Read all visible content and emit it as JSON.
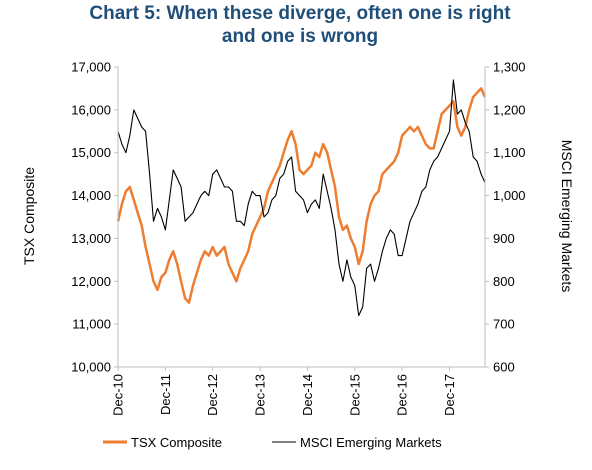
{
  "chart_data": {
    "type": "line",
    "title": "Chart 5: When these diverge, often one is right and one is wrong",
    "title_lines": [
      "Chart 5: When these diverge, often one is right",
      "and one is wrong"
    ],
    "x_ticks": [
      "Dec-10",
      "Dec-11",
      "Dec-12",
      "Dec-13",
      "Dec-14",
      "Dec-15",
      "Dec-16",
      "Dec-17"
    ],
    "x_range": [
      "Dec-10",
      "Sep-18"
    ],
    "y_left": {
      "label": "TSX Composite",
      "range": [
        10000,
        17000
      ],
      "ticks": [
        "10,000",
        "11,000",
        "12,000",
        "13,000",
        "14,000",
        "15,000",
        "16,000",
        "17,000"
      ]
    },
    "y_right": {
      "label": "MSCI Emerging Markets",
      "range": [
        600,
        1300
      ],
      "ticks": [
        "600",
        "700",
        "800",
        "900",
        "1,000",
        "1,100",
        "1,200",
        "1,300"
      ]
    },
    "grid": false,
    "legend_position": "bottom",
    "series": [
      {
        "name": "TSX Composite",
        "axis": "left",
        "color": "#ed7d31",
        "points": [
          [
            "2010-12",
            13400
          ],
          [
            "2011-01",
            13800
          ],
          [
            "2011-02",
            14100
          ],
          [
            "2011-03",
            14200
          ],
          [
            "2011-04",
            13900
          ],
          [
            "2011-05",
            13600
          ],
          [
            "2011-06",
            13300
          ],
          [
            "2011-07",
            12800
          ],
          [
            "2011-08",
            12400
          ],
          [
            "2011-09",
            12000
          ],
          [
            "2011-10",
            11800
          ],
          [
            "2011-11",
            12100
          ],
          [
            "2011-12",
            12200
          ],
          [
            "2012-01",
            12500
          ],
          [
            "2012-02",
            12700
          ],
          [
            "2012-03",
            12400
          ],
          [
            "2012-04",
            12000
          ],
          [
            "2012-05",
            11600
          ],
          [
            "2012-06",
            11500
          ],
          [
            "2012-07",
            11900
          ],
          [
            "2012-08",
            12200
          ],
          [
            "2012-09",
            12500
          ],
          [
            "2012-10",
            12700
          ],
          [
            "2012-11",
            12600
          ],
          [
            "2012-12",
            12800
          ],
          [
            "2013-01",
            12600
          ],
          [
            "2013-02",
            12700
          ],
          [
            "2013-03",
            12800
          ],
          [
            "2013-04",
            12400
          ],
          [
            "2013-05",
            12200
          ],
          [
            "2013-06",
            12000
          ],
          [
            "2013-07",
            12300
          ],
          [
            "2013-08",
            12500
          ],
          [
            "2013-09",
            12700
          ],
          [
            "2013-10",
            13100
          ],
          [
            "2013-11",
            13300
          ],
          [
            "2013-12",
            13500
          ],
          [
            "2014-01",
            13700
          ],
          [
            "2014-02",
            14100
          ],
          [
            "2014-03",
            14300
          ],
          [
            "2014-04",
            14500
          ],
          [
            "2014-05",
            14700
          ],
          [
            "2014-06",
            15000
          ],
          [
            "2014-07",
            15300
          ],
          [
            "2014-08",
            15500
          ],
          [
            "2014-09",
            15200
          ],
          [
            "2014-10",
            14600
          ],
          [
            "2014-11",
            14500
          ],
          [
            "2014-12",
            14600
          ],
          [
            "2015-01",
            14700
          ],
          [
            "2015-02",
            15000
          ],
          [
            "2015-03",
            14900
          ],
          [
            "2015-04",
            15200
          ],
          [
            "2015-05",
            15000
          ],
          [
            "2015-06",
            14600
          ],
          [
            "2015-07",
            14200
          ],
          [
            "2015-08",
            13500
          ],
          [
            "2015-09",
            13200
          ],
          [
            "2015-10",
            13300
          ],
          [
            "2015-11",
            13000
          ],
          [
            "2015-12",
            12800
          ],
          [
            "2016-01",
            12400
          ],
          [
            "2016-02",
            12700
          ],
          [
            "2016-03",
            13400
          ],
          [
            "2016-04",
            13800
          ],
          [
            "2016-05",
            14000
          ],
          [
            "2016-06",
            14100
          ],
          [
            "2016-07",
            14500
          ],
          [
            "2016-08",
            14600
          ],
          [
            "2016-09",
            14700
          ],
          [
            "2016-10",
            14800
          ],
          [
            "2016-11",
            15000
          ],
          [
            "2016-12",
            15400
          ],
          [
            "2017-01",
            15500
          ],
          [
            "2017-02",
            15600
          ],
          [
            "2017-03",
            15500
          ],
          [
            "2017-04",
            15600
          ],
          [
            "2017-05",
            15400
          ],
          [
            "2017-06",
            15200
          ],
          [
            "2017-07",
            15100
          ],
          [
            "2017-08",
            15100
          ],
          [
            "2017-09",
            15500
          ],
          [
            "2017-10",
            15900
          ],
          [
            "2017-11",
            16000
          ],
          [
            "2017-12",
            16100
          ],
          [
            "2018-01",
            16200
          ],
          [
            "2018-02",
            15600
          ],
          [
            "2018-03",
            15400
          ],
          [
            "2018-04",
            15600
          ],
          [
            "2018-05",
            16000
          ],
          [
            "2018-06",
            16300
          ],
          [
            "2018-07",
            16400
          ],
          [
            "2018-08",
            16500
          ],
          [
            "2018-09",
            16300
          ]
        ]
      },
      {
        "name": "MSCI Emerging Markets",
        "axis": "right",
        "color": "#000000",
        "points": [
          [
            "2010-12",
            1150
          ],
          [
            "2011-01",
            1120
          ],
          [
            "2011-02",
            1100
          ],
          [
            "2011-03",
            1140
          ],
          [
            "2011-04",
            1200
          ],
          [
            "2011-05",
            1180
          ],
          [
            "2011-06",
            1160
          ],
          [
            "2011-07",
            1150
          ],
          [
            "2011-08",
            1050
          ],
          [
            "2011-09",
            940
          ],
          [
            "2011-10",
            970
          ],
          [
            "2011-11",
            950
          ],
          [
            "2011-12",
            920
          ],
          [
            "2012-01",
            990
          ],
          [
            "2012-02",
            1060
          ],
          [
            "2012-03",
            1040
          ],
          [
            "2012-04",
            1020
          ],
          [
            "2012-05",
            940
          ],
          [
            "2012-06",
            950
          ],
          [
            "2012-07",
            960
          ],
          [
            "2012-08",
            980
          ],
          [
            "2012-09",
            1000
          ],
          [
            "2012-10",
            1010
          ],
          [
            "2012-11",
            1000
          ],
          [
            "2012-12",
            1050
          ],
          [
            "2013-01",
            1060
          ],
          [
            "2013-02",
            1040
          ],
          [
            "2013-03",
            1020
          ],
          [
            "2013-04",
            1020
          ],
          [
            "2013-05",
            1010
          ],
          [
            "2013-06",
            940
          ],
          [
            "2013-07",
            940
          ],
          [
            "2013-08",
            930
          ],
          [
            "2013-09",
            980
          ],
          [
            "2013-10",
            1010
          ],
          [
            "2013-11",
            1000
          ],
          [
            "2013-12",
            1000
          ],
          [
            "2014-01",
            950
          ],
          [
            "2014-02",
            960
          ],
          [
            "2014-03",
            990
          ],
          [
            "2014-04",
            1000
          ],
          [
            "2014-05",
            1040
          ],
          [
            "2014-06",
            1050
          ],
          [
            "2014-07",
            1080
          ],
          [
            "2014-08",
            1090
          ],
          [
            "2014-09",
            1010
          ],
          [
            "2014-10",
            1000
          ],
          [
            "2014-11",
            990
          ],
          [
            "2014-12",
            960
          ],
          [
            "2015-01",
            980
          ],
          [
            "2015-02",
            990
          ],
          [
            "2015-03",
            970
          ],
          [
            "2015-04",
            1050
          ],
          [
            "2015-05",
            1010
          ],
          [
            "2015-06",
            970
          ],
          [
            "2015-07",
            920
          ],
          [
            "2015-08",
            840
          ],
          [
            "2015-09",
            800
          ],
          [
            "2015-10",
            850
          ],
          [
            "2015-11",
            810
          ],
          [
            "2015-12",
            790
          ],
          [
            "2016-01",
            720
          ],
          [
            "2016-02",
            740
          ],
          [
            "2016-03",
            830
          ],
          [
            "2016-04",
            840
          ],
          [
            "2016-05",
            800
          ],
          [
            "2016-06",
            830
          ],
          [
            "2016-07",
            870
          ],
          [
            "2016-08",
            900
          ],
          [
            "2016-09",
            920
          ],
          [
            "2016-10",
            910
          ],
          [
            "2016-11",
            860
          ],
          [
            "2016-12",
            860
          ],
          [
            "2017-01",
            900
          ],
          [
            "2017-02",
            940
          ],
          [
            "2017-03",
            960
          ],
          [
            "2017-04",
            980
          ],
          [
            "2017-05",
            1010
          ],
          [
            "2017-06",
            1020
          ],
          [
            "2017-07",
            1060
          ],
          [
            "2017-08",
            1080
          ],
          [
            "2017-09",
            1090
          ],
          [
            "2017-10",
            1110
          ],
          [
            "2017-11",
            1130
          ],
          [
            "2017-12",
            1150
          ],
          [
            "2018-01",
            1270
          ],
          [
            "2018-02",
            1190
          ],
          [
            "2018-03",
            1200
          ],
          [
            "2018-04",
            1170
          ],
          [
            "2018-05",
            1150
          ],
          [
            "2018-06",
            1090
          ],
          [
            "2018-07",
            1080
          ],
          [
            "2018-08",
            1050
          ],
          [
            "2018-09",
            1030
          ]
        ]
      }
    ]
  }
}
